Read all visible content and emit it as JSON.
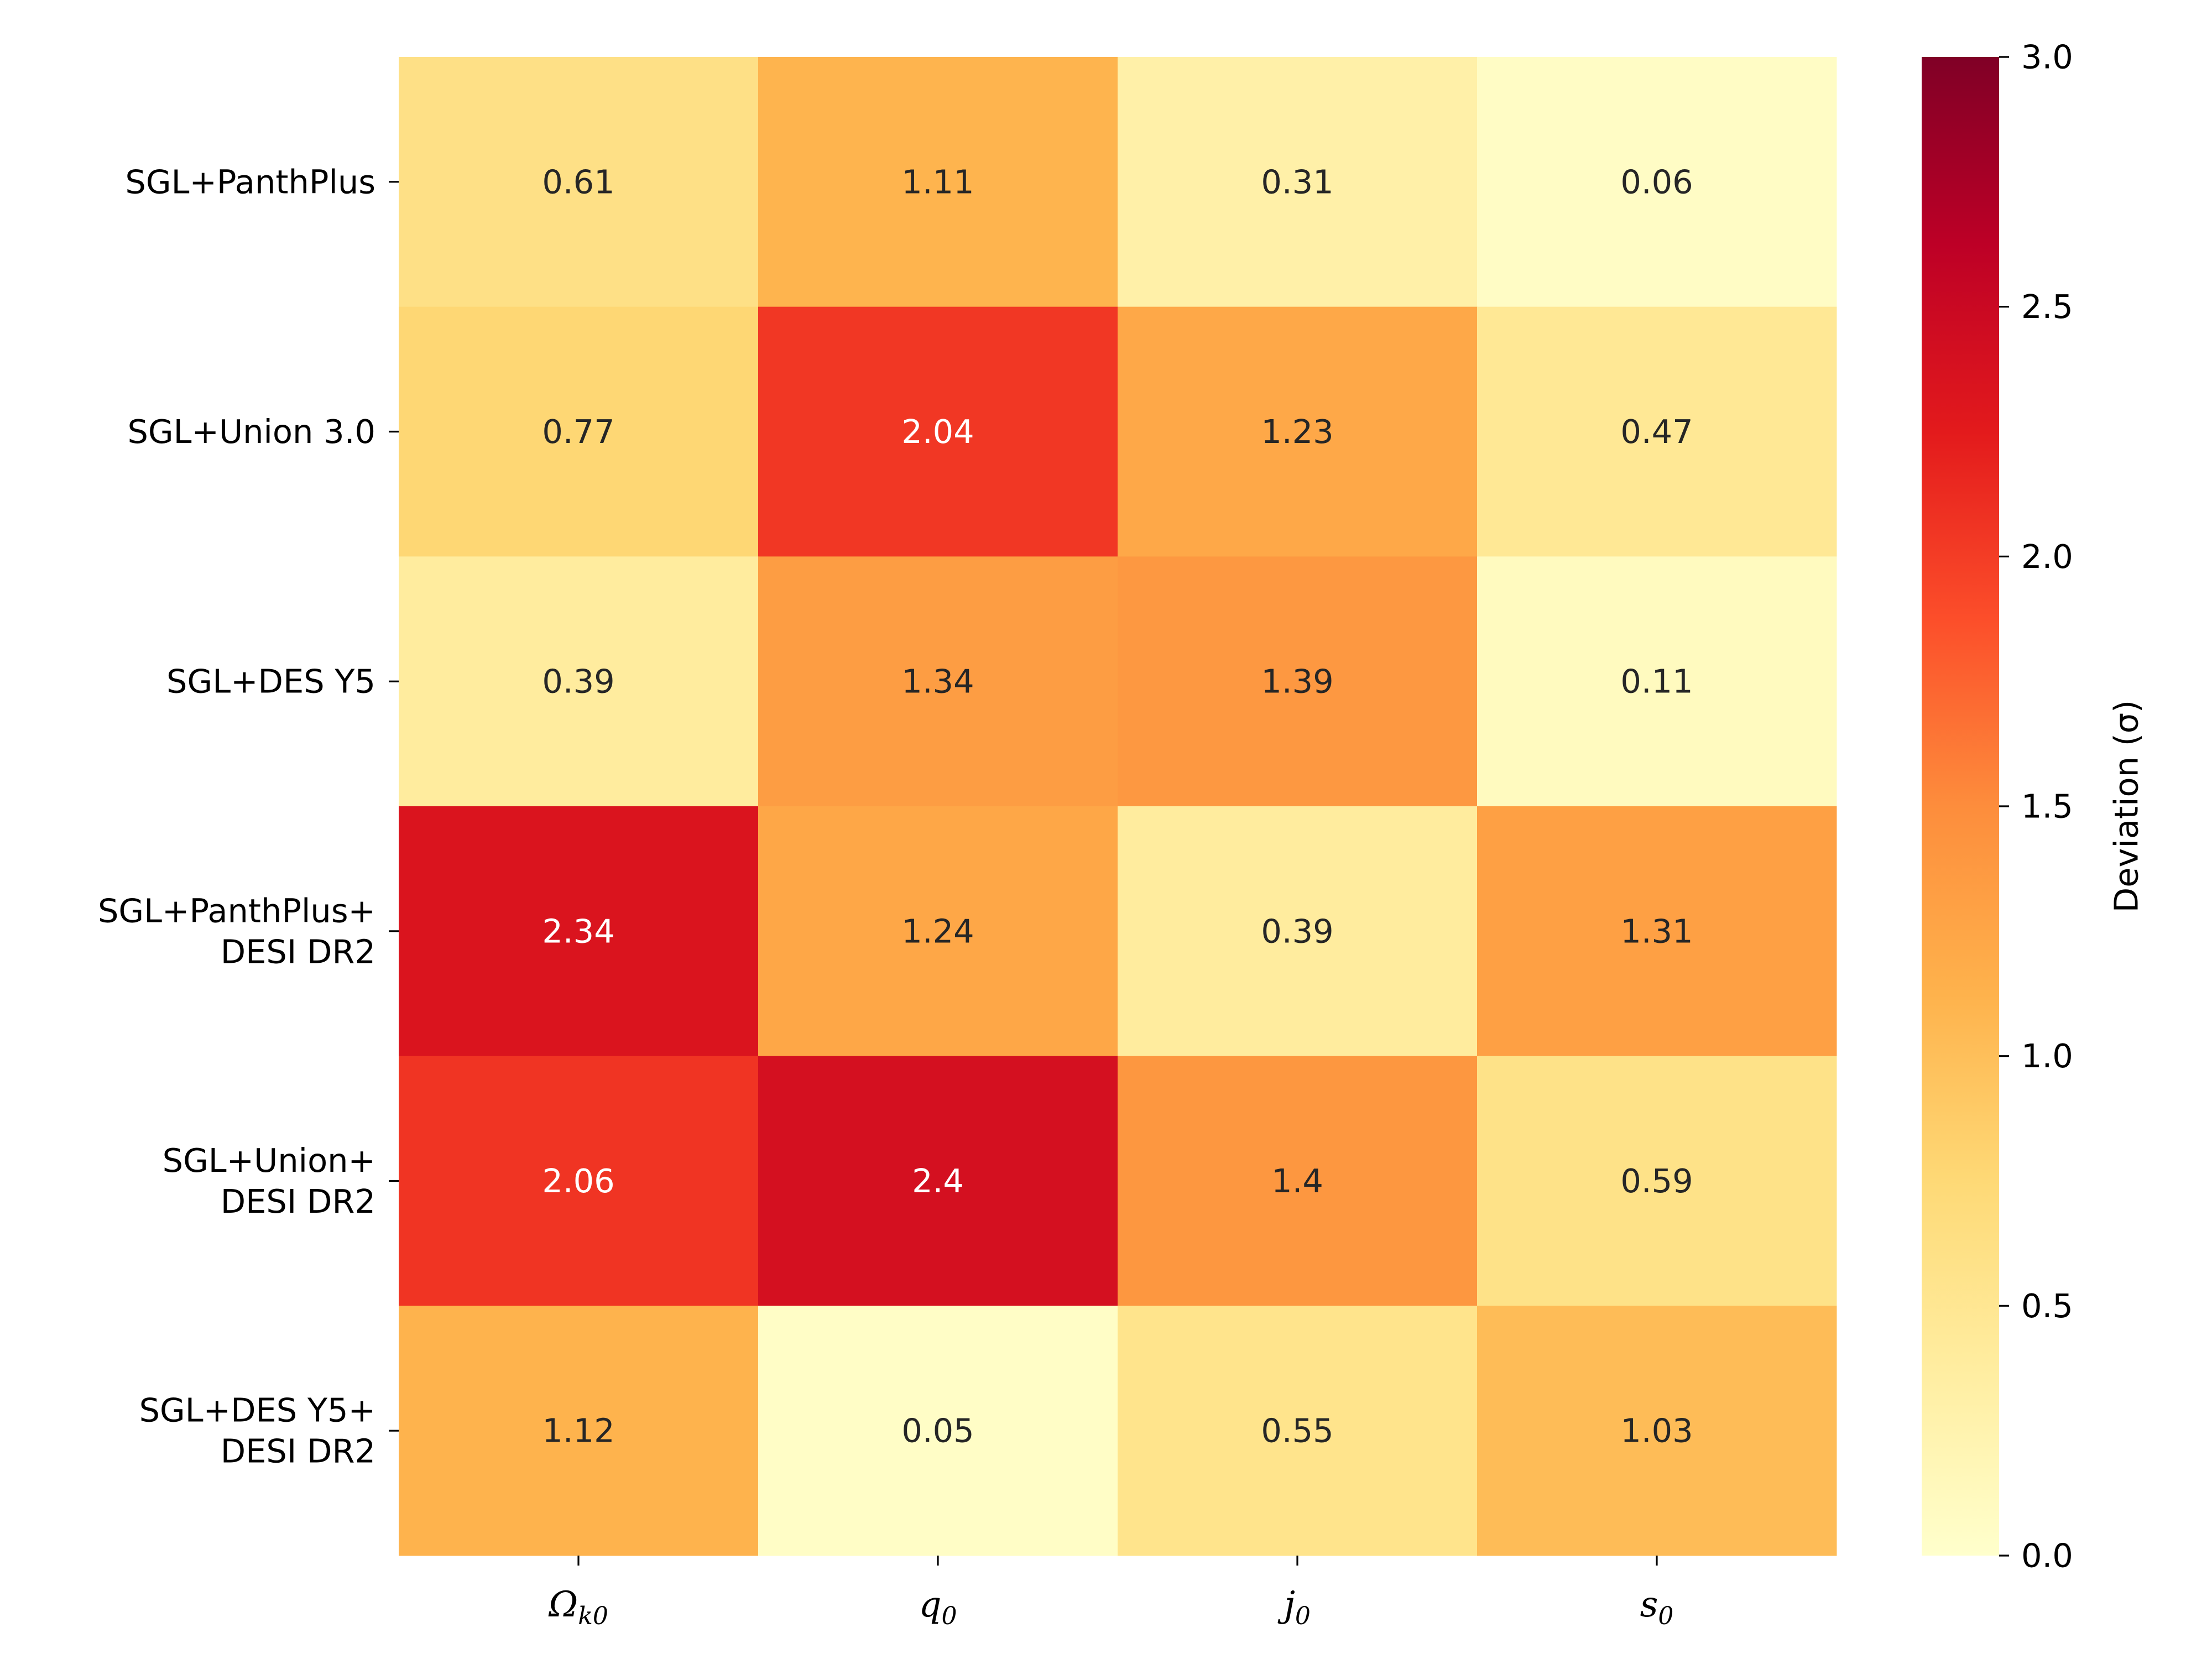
{
  "chart_data": {
    "type": "heatmap",
    "rows": [
      [
        "SGL+PanthPlus"
      ],
      [
        "SGL+Union 3.0"
      ],
      [
        "SGL+DES Y5"
      ],
      [
        "SGL+PanthPlus+",
        "DESI DR2"
      ],
      [
        "SGL+Union+",
        "DESI DR2"
      ],
      [
        "SGL+DES Y5+",
        "DESI DR2"
      ]
    ],
    "columns": [
      {
        "base": "Ω",
        "sub": "k0"
      },
      {
        "base": "q",
        "sub": "0"
      },
      {
        "base": "j",
        "sub": "0"
      },
      {
        "base": "s",
        "sub": "0"
      }
    ],
    "values": [
      [
        0.61,
        1.11,
        0.31,
        0.06
      ],
      [
        0.77,
        2.04,
        1.23,
        0.47
      ],
      [
        0.39,
        1.34,
        1.39,
        0.11
      ],
      [
        2.34,
        1.24,
        0.39,
        1.31
      ],
      [
        2.06,
        2.4,
        1.4,
        0.59
      ],
      [
        1.12,
        0.05,
        0.55,
        1.03
      ]
    ],
    "value_labels": [
      [
        "0.61",
        "1.11",
        "0.31",
        "0.06"
      ],
      [
        "0.77",
        "2.04",
        "1.23",
        "0.47"
      ],
      [
        "0.39",
        "1.34",
        "1.39",
        "0.11"
      ],
      [
        "2.34",
        "1.24",
        "0.39",
        "1.31"
      ],
      [
        "2.06",
        "2.4",
        "1.4",
        "0.59"
      ],
      [
        "1.12",
        "0.05",
        "0.55",
        "1.03"
      ]
    ],
    "colormap": "YlOrRd",
    "colormap_stops": [
      "#ffffcc",
      "#ffeda0",
      "#fed976",
      "#feb24c",
      "#fd8d3c",
      "#fc4e2a",
      "#e31a1c",
      "#bd0026",
      "#800026"
    ],
    "vmin": 0.0,
    "vmax": 3.0,
    "colorbar": {
      "label": "Deviation (σ)",
      "ticks": [
        "0.0",
        "0.5",
        "1.0",
        "1.5",
        "2.0",
        "2.5",
        "3.0"
      ]
    }
  }
}
